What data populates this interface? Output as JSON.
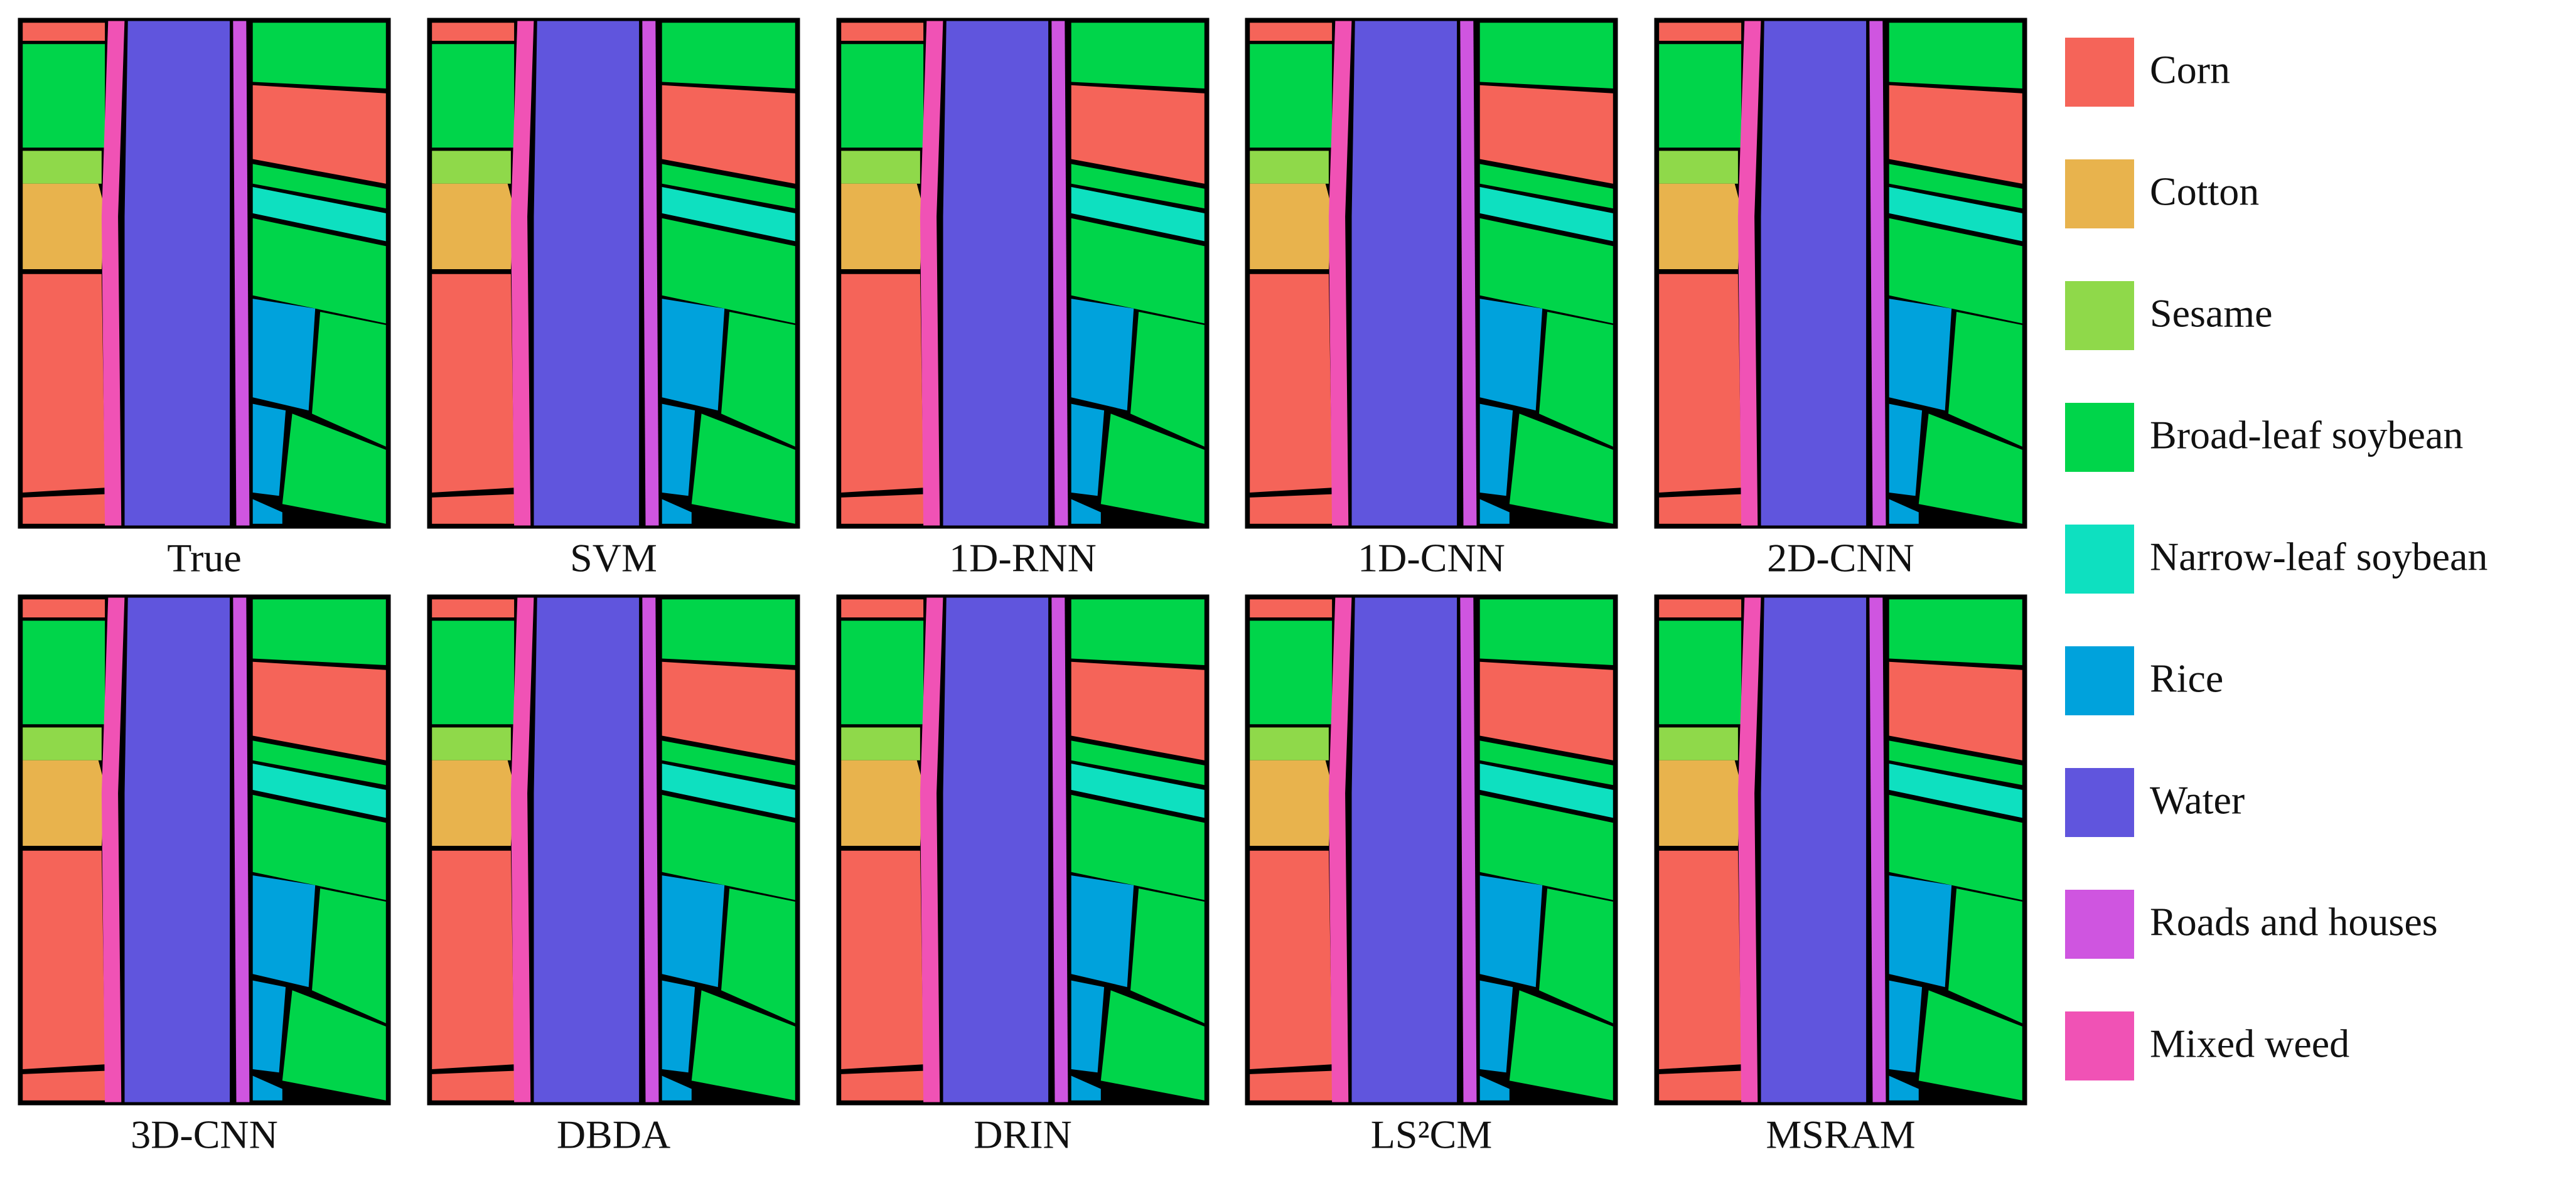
{
  "figure": {
    "panels": [
      {
        "label": "True"
      },
      {
        "label": "SVM"
      },
      {
        "label": "1D-RNN"
      },
      {
        "label": "1D-CNN"
      },
      {
        "label": "2D-CNN"
      },
      {
        "label": "3D-CNN"
      },
      {
        "label": "DBDA"
      },
      {
        "label": "DRIN"
      },
      {
        "label": "LS²CM"
      },
      {
        "label": "MSRAM"
      }
    ],
    "legend": [
      {
        "label": "Corn",
        "color": "#f56459"
      },
      {
        "label": "Cotton",
        "color": "#e8b34d"
      },
      {
        "label": "Sesame",
        "color": "#8fd94a"
      },
      {
        "label": "Broad-leaf soybean",
        "color": "#00d54a"
      },
      {
        "label": "Narrow-leaf soybean",
        "color": "#0ee0c0"
      },
      {
        "label": "Rice",
        "color": "#00a2dc"
      },
      {
        "label": "Water",
        "color": "#6055dd"
      },
      {
        "label": "Roads and houses",
        "color": "#cf55e0"
      },
      {
        "label": "Mixed weed",
        "color": "#f052b5"
      }
    ]
  }
}
